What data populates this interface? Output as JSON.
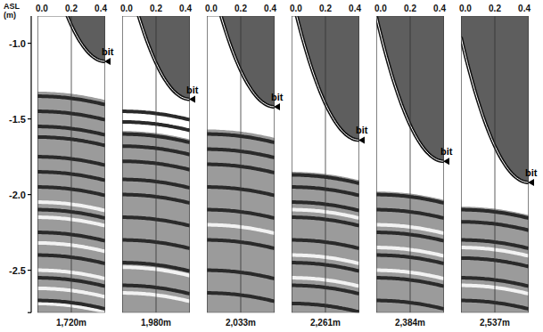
{
  "chart_data": {
    "type": "profile",
    "y_label": "ASL (m)",
    "ylim": [
      -2.78,
      -0.82
    ],
    "yticks": [
      {
        "value": -1.0,
        "label": "-1.0"
      },
      -1.5,
      {
        "value": -2.0,
        "label": "-2.0"
      },
      -2.5
    ],
    "xlim": [
      0,
      0.4
    ],
    "xticks": [
      {
        "value": 0,
        "label": "0.0"
      },
      0.2,
      0.4
    ],
    "grid": true,
    "panels": [
      {
        "name": "1,720m",
        "bit_label": "bit",
        "bit_depth": -1.12,
        "layer_top": -1.32,
        "dark_bands": [
          -1.35,
          -1.45,
          -1.55,
          -1.62,
          -1.75,
          -1.85,
          -1.95,
          -2.1,
          -2.25,
          -2.4,
          -2.55,
          -2.7
        ],
        "light_bands": [
          -2.05,
          -2.15,
          -2.32,
          -2.5,
          -2.62,
          -2.72
        ]
      },
      {
        "name": "1,980m",
        "bit_label": "bit",
        "bit_depth": -1.37,
        "layer_top": -1.58,
        "dark_bands": [
          -1.45,
          -1.52,
          -1.6,
          -1.68,
          -1.78,
          -1.9,
          -2.0,
          -2.15,
          -2.3,
          -2.45,
          -2.6
        ],
        "light_bands": [
          -2.48,
          -2.65
        ]
      },
      {
        "name": "2,033m",
        "bit_label": "bit",
        "bit_depth": -1.42,
        "layer_top": -1.57,
        "dark_bands": [
          -1.6,
          -1.7,
          -1.8,
          -1.95,
          -2.1,
          -2.3,
          -2.5,
          -2.65
        ],
        "light_bands": [
          -2.2
        ]
      },
      {
        "name": "2,261m",
        "bit_label": "bit",
        "bit_depth": -1.64,
        "layer_top": -1.85,
        "dark_bands": [
          -1.87,
          -1.95,
          -2.05,
          -2.15,
          -2.3,
          -2.45,
          -2.6,
          -2.72
        ],
        "light_bands": [
          -2.1,
          -2.4,
          -2.55
        ]
      },
      {
        "name": "2,384m",
        "bit_label": "bit",
        "bit_depth": -1.78,
        "layer_top": -1.98,
        "dark_bands": [
          -2.0,
          -2.1,
          -2.25,
          -2.4,
          -2.55,
          -2.7
        ],
        "light_bands": [
          -2.2,
          -2.35,
          -2.5
        ]
      },
      {
        "name": "2,537m",
        "bit_label": "bit",
        "bit_depth": -1.92,
        "layer_top": -2.08,
        "dark_bands": [
          -2.1,
          -2.18,
          -2.3,
          -2.42,
          -2.55,
          -2.7
        ],
        "light_bands": [
          -2.35,
          -2.6
        ]
      }
    ]
  }
}
